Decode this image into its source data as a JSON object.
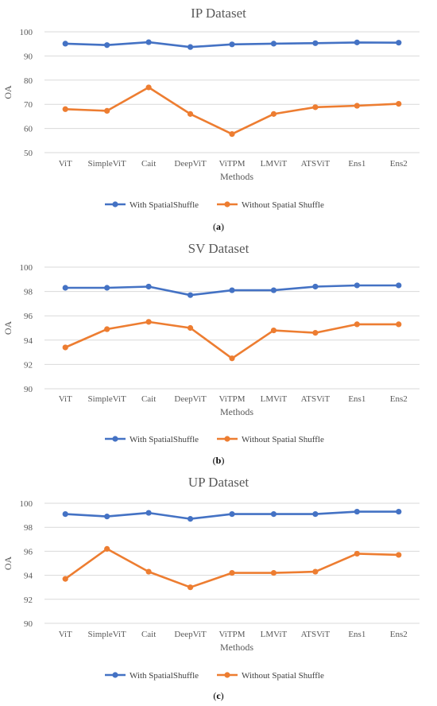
{
  "colors": {
    "with": "#4472C4",
    "without": "#ED7D31"
  },
  "panels": [
    {
      "caption_letter": "a",
      "chart_data": {
        "type": "line",
        "title": "IP Dataset",
        "xlabel": "Methods",
        "ylabel": "OA",
        "categories": [
          "ViT",
          "SimpleViT",
          "Cait",
          "DeepViT",
          "ViTPM",
          "LMViT",
          "ATSViT",
          "Ens1",
          "Ens2"
        ],
        "ylim": [
          50,
          100
        ],
        "yticks": [
          50,
          60,
          70,
          80,
          90,
          100
        ],
        "grid": true,
        "legend": "bottom",
        "series": [
          {
            "name": "With SpatialShuffle",
            "values": [
              95.1,
              94.5,
              95.7,
              93.7,
              94.8,
              95.1,
              95.3,
              95.6,
              95.5
            ]
          },
          {
            "name": "Without Spatial Shuffle",
            "values": [
              68.0,
              67.3,
              77.0,
              66.0,
              57.7,
              66.0,
              68.8,
              69.4,
              70.2
            ]
          }
        ]
      }
    },
    {
      "caption_letter": "b",
      "chart_data": {
        "type": "line",
        "title": "SV Dataset",
        "xlabel": "Methods",
        "ylabel": "OA",
        "categories": [
          "ViT",
          "SimpleViT",
          "Cait",
          "DeepViT",
          "ViTPM",
          "LMViT",
          "ATSViT",
          "Ens1",
          "Ens2"
        ],
        "ylim": [
          90,
          100
        ],
        "yticks": [
          90,
          92,
          94,
          96,
          98,
          100
        ],
        "grid": true,
        "legend": "bottom",
        "series": [
          {
            "name": "With SpatialShuffle",
            "values": [
              98.3,
              98.3,
              98.4,
              97.7,
              98.1,
              98.1,
              98.4,
              98.5,
              98.5
            ]
          },
          {
            "name": "Without Spatial Shuffle",
            "values": [
              93.4,
              94.9,
              95.5,
              95.0,
              92.5,
              94.8,
              94.6,
              95.3,
              95.3
            ]
          }
        ]
      }
    },
    {
      "caption_letter": "c",
      "chart_data": {
        "type": "line",
        "title": "UP Dataset",
        "xlabel": "Methods",
        "ylabel": "OA",
        "categories": [
          "ViT",
          "SimpleViT",
          "Cait",
          "DeepViT",
          "ViTPM",
          "LMViT",
          "ATSViT",
          "Ens1",
          "Ens2"
        ],
        "ylim": [
          90,
          100
        ],
        "yticks": [
          90,
          92,
          94,
          96,
          98,
          100
        ],
        "grid": true,
        "legend": "bottom",
        "series": [
          {
            "name": "With SpatialShuffle",
            "values": [
              99.1,
              98.9,
              99.2,
              98.7,
              99.1,
              99.1,
              99.1,
              99.3,
              99.3
            ]
          },
          {
            "name": "Without Spatial Shuffle",
            "values": [
              93.7,
              96.2,
              94.3,
              93.0,
              94.2,
              94.2,
              94.3,
              95.8,
              95.7
            ]
          }
        ]
      }
    }
  ]
}
